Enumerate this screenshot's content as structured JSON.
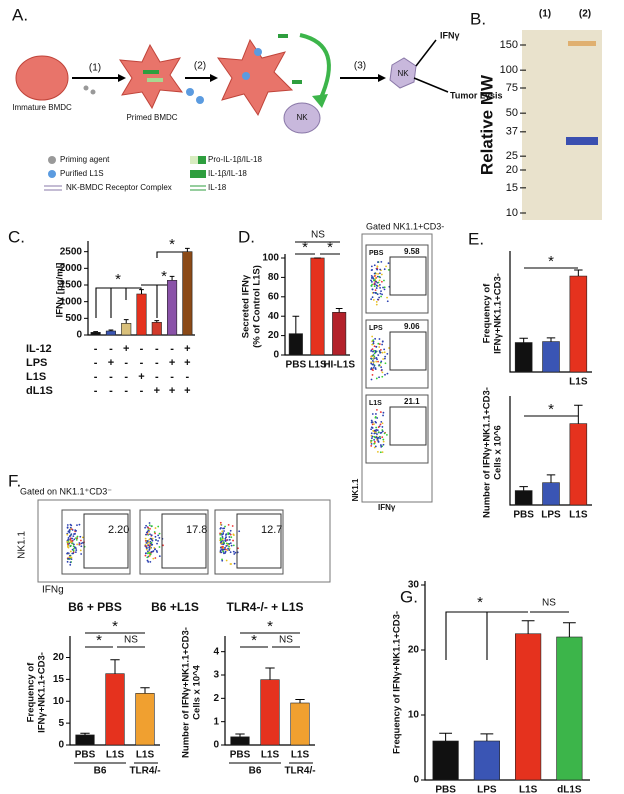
{
  "panel_labels": {
    "a": "A.",
    "b": "B.",
    "c": "C.",
    "d": "D.",
    "e": "E.",
    "f": "F.",
    "g": "G."
  },
  "diagram": {
    "steps": [
      "(1)",
      "(2)",
      "(3)"
    ],
    "cells": [
      "Immature BMDC",
      "Primed BMDC",
      "NK",
      "NK"
    ],
    "outputs": [
      "IFNγ",
      "Tumor Lysis"
    ],
    "legend": [
      "Priming agent",
      "Purified L1S",
      "NK-BMDC Receptor Complex",
      "Pro-IL-1β/IL-18",
      "IL-1β/IL-18",
      "IL-18"
    ]
  },
  "gel": {
    "y_label": "Relative MW",
    "lanes": [
      "(1)",
      "(2)"
    ],
    "ladder": [
      150,
      100,
      75,
      50,
      37,
      25,
      20,
      15,
      10
    ]
  },
  "flow_e": {
    "gate": "Gated NK1.1+CD3-",
    "samples": [
      "PBS",
      "LPS",
      "L1S"
    ],
    "percentages": [
      "9.58",
      "9.06",
      "21.1"
    ],
    "x_label": "IFNγ",
    "y_label": "NK1.1"
  },
  "flow_f": {
    "gate": "Gated on NK1.1⁺CD3⁻",
    "percentages": [
      "2.20",
      "17.8",
      "12.7"
    ],
    "x_label": "IFNg",
    "y_label": "NK1.1",
    "groups": [
      "B6 + PBS",
      "B6 +L1S",
      "TLR4-/- + L1S"
    ]
  },
  "chart_data": [
    {
      "type": "bar",
      "y_label": [
        "IFNγ [pg/ml]"
      ],
      "values": [
        80,
        120,
        350,
        1230,
        380,
        1640,
        2500
      ],
      "errors": [
        20,
        30,
        110,
        130,
        50,
        120,
        100
      ],
      "colors": [
        "#111111",
        "#3a55b4",
        "#d9c07a",
        "#e5321e",
        "#d23a2a",
        "#8a52a8",
        "#8b4a17"
      ],
      "ylim": [
        0,
        2700
      ],
      "yticks": [
        0,
        500,
        1000,
        1500,
        2000,
        2500
      ],
      "conditions": [
        {
          "name": "IL-12",
          "signs": [
            "-",
            "-",
            "+",
            "-",
            "-",
            "-",
            "+"
          ]
        },
        {
          "name": "LPS",
          "signs": [
            "-",
            "+",
            "-",
            "-",
            "-",
            "+",
            "+"
          ]
        },
        {
          "name": "L1S",
          "signs": [
            "-",
            "-",
            "-",
            "+",
            "-",
            "-",
            "-"
          ]
        },
        {
          "name": "dL1S",
          "signs": [
            "-",
            "-",
            "-",
            "-",
            "+",
            "+",
            "+"
          ]
        }
      ],
      "annotations": [
        "*",
        "*",
        "*"
      ]
    },
    {
      "type": "bar",
      "y_label": [
        "Secreted IFNγ",
        "(% of Control L1S)"
      ],
      "categories": [
        "PBS",
        "L1S",
        "HI-L1S"
      ],
      "values": [
        22,
        100,
        44
      ],
      "errors": [
        18,
        0,
        4
      ],
      "colors": [
        "#111111",
        "#e5321e",
        "#b3212a"
      ],
      "ylim": [
        0,
        100
      ],
      "yticks": [
        0,
        20,
        40,
        60,
        80,
        100
      ],
      "annotations": [
        "NS",
        "*",
        "*"
      ]
    },
    {
      "type": "bar",
      "y_label": [
        "Frequency of",
        "IFNγ+NK1.1+CD3-"
      ],
      "categories": [
        null,
        null,
        "L1S"
      ],
      "values": [
        6.3,
        6.5,
        20.5
      ],
      "errors": [
        0.9,
        0.8,
        1.3
      ],
      "colors": [
        "#111111",
        "#3a55b4",
        "#e5321e"
      ],
      "ylim": [
        0,
        25
      ],
      "annotations": [
        "*"
      ]
    },
    {
      "type": "bar",
      "y_label": [
        "Number of IFNγ+NK1.1+CD3-",
        "Cells x 10^6"
      ],
      "categories": [
        "PBS",
        "LPS",
        "L1S"
      ],
      "values": [
        0.55,
        0.85,
        3.1
      ],
      "errors": [
        0.15,
        0.3,
        0.7
      ],
      "colors": [
        "#111111",
        "#3a55b4",
        "#e5321e"
      ],
      "ylim": [
        0,
        4
      ],
      "annotations": [
        "*"
      ]
    },
    {
      "type": "bar",
      "y_label": [
        "Frequency of",
        "IFNγ+NK1.1+CD3-"
      ],
      "categories": [
        "PBS",
        "L1S",
        "L1S"
      ],
      "group_labels": [
        "B6",
        "TLR4/-"
      ],
      "values": [
        2.3,
        16.3,
        11.8
      ],
      "errors": [
        0.4,
        3.2,
        1.3
      ],
      "colors": [
        "#111111",
        "#e5321e",
        "#f0a030"
      ],
      "ylim": [
        0,
        24
      ],
      "yticks": [
        0,
        5,
        10,
        15,
        20
      ],
      "annotations": [
        "*",
        "*",
        "NS"
      ]
    },
    {
      "type": "bar",
      "y_label": [
        "Number of IFNγ+NK1.1+CD3-",
        "Cells x 10^4"
      ],
      "categories": [
        "PBS",
        "L1S",
        "L1S"
      ],
      "group_labels": [
        "B6",
        "TLR4/-"
      ],
      "values": [
        0.35,
        2.8,
        1.8
      ],
      "errors": [
        0.12,
        0.5,
        0.15
      ],
      "colors": [
        "#111111",
        "#e5321e",
        "#f0a030"
      ],
      "ylim": [
        0,
        4.5
      ],
      "yticks": [
        0,
        1,
        2,
        3,
        4
      ],
      "annotations": [
        "*",
        "*",
        "NS"
      ]
    },
    {
      "type": "bar",
      "y_label": [
        "Frequency of IFNγ+NK1.1+CD3-"
      ],
      "categories": [
        "PBS",
        "LPS",
        "L1S",
        "dL1S"
      ],
      "values": [
        6,
        6,
        22.5,
        22
      ],
      "errors": [
        1.2,
        1.1,
        2,
        2.2
      ],
      "colors": [
        "#111111",
        "#3a55b4",
        "#e5321e",
        "#3cb54a"
      ],
      "ylim": [
        0,
        30
      ],
      "yticks": [
        0,
        10,
        20,
        30
      ],
      "annotations": [
        "*",
        "NS"
      ]
    }
  ]
}
